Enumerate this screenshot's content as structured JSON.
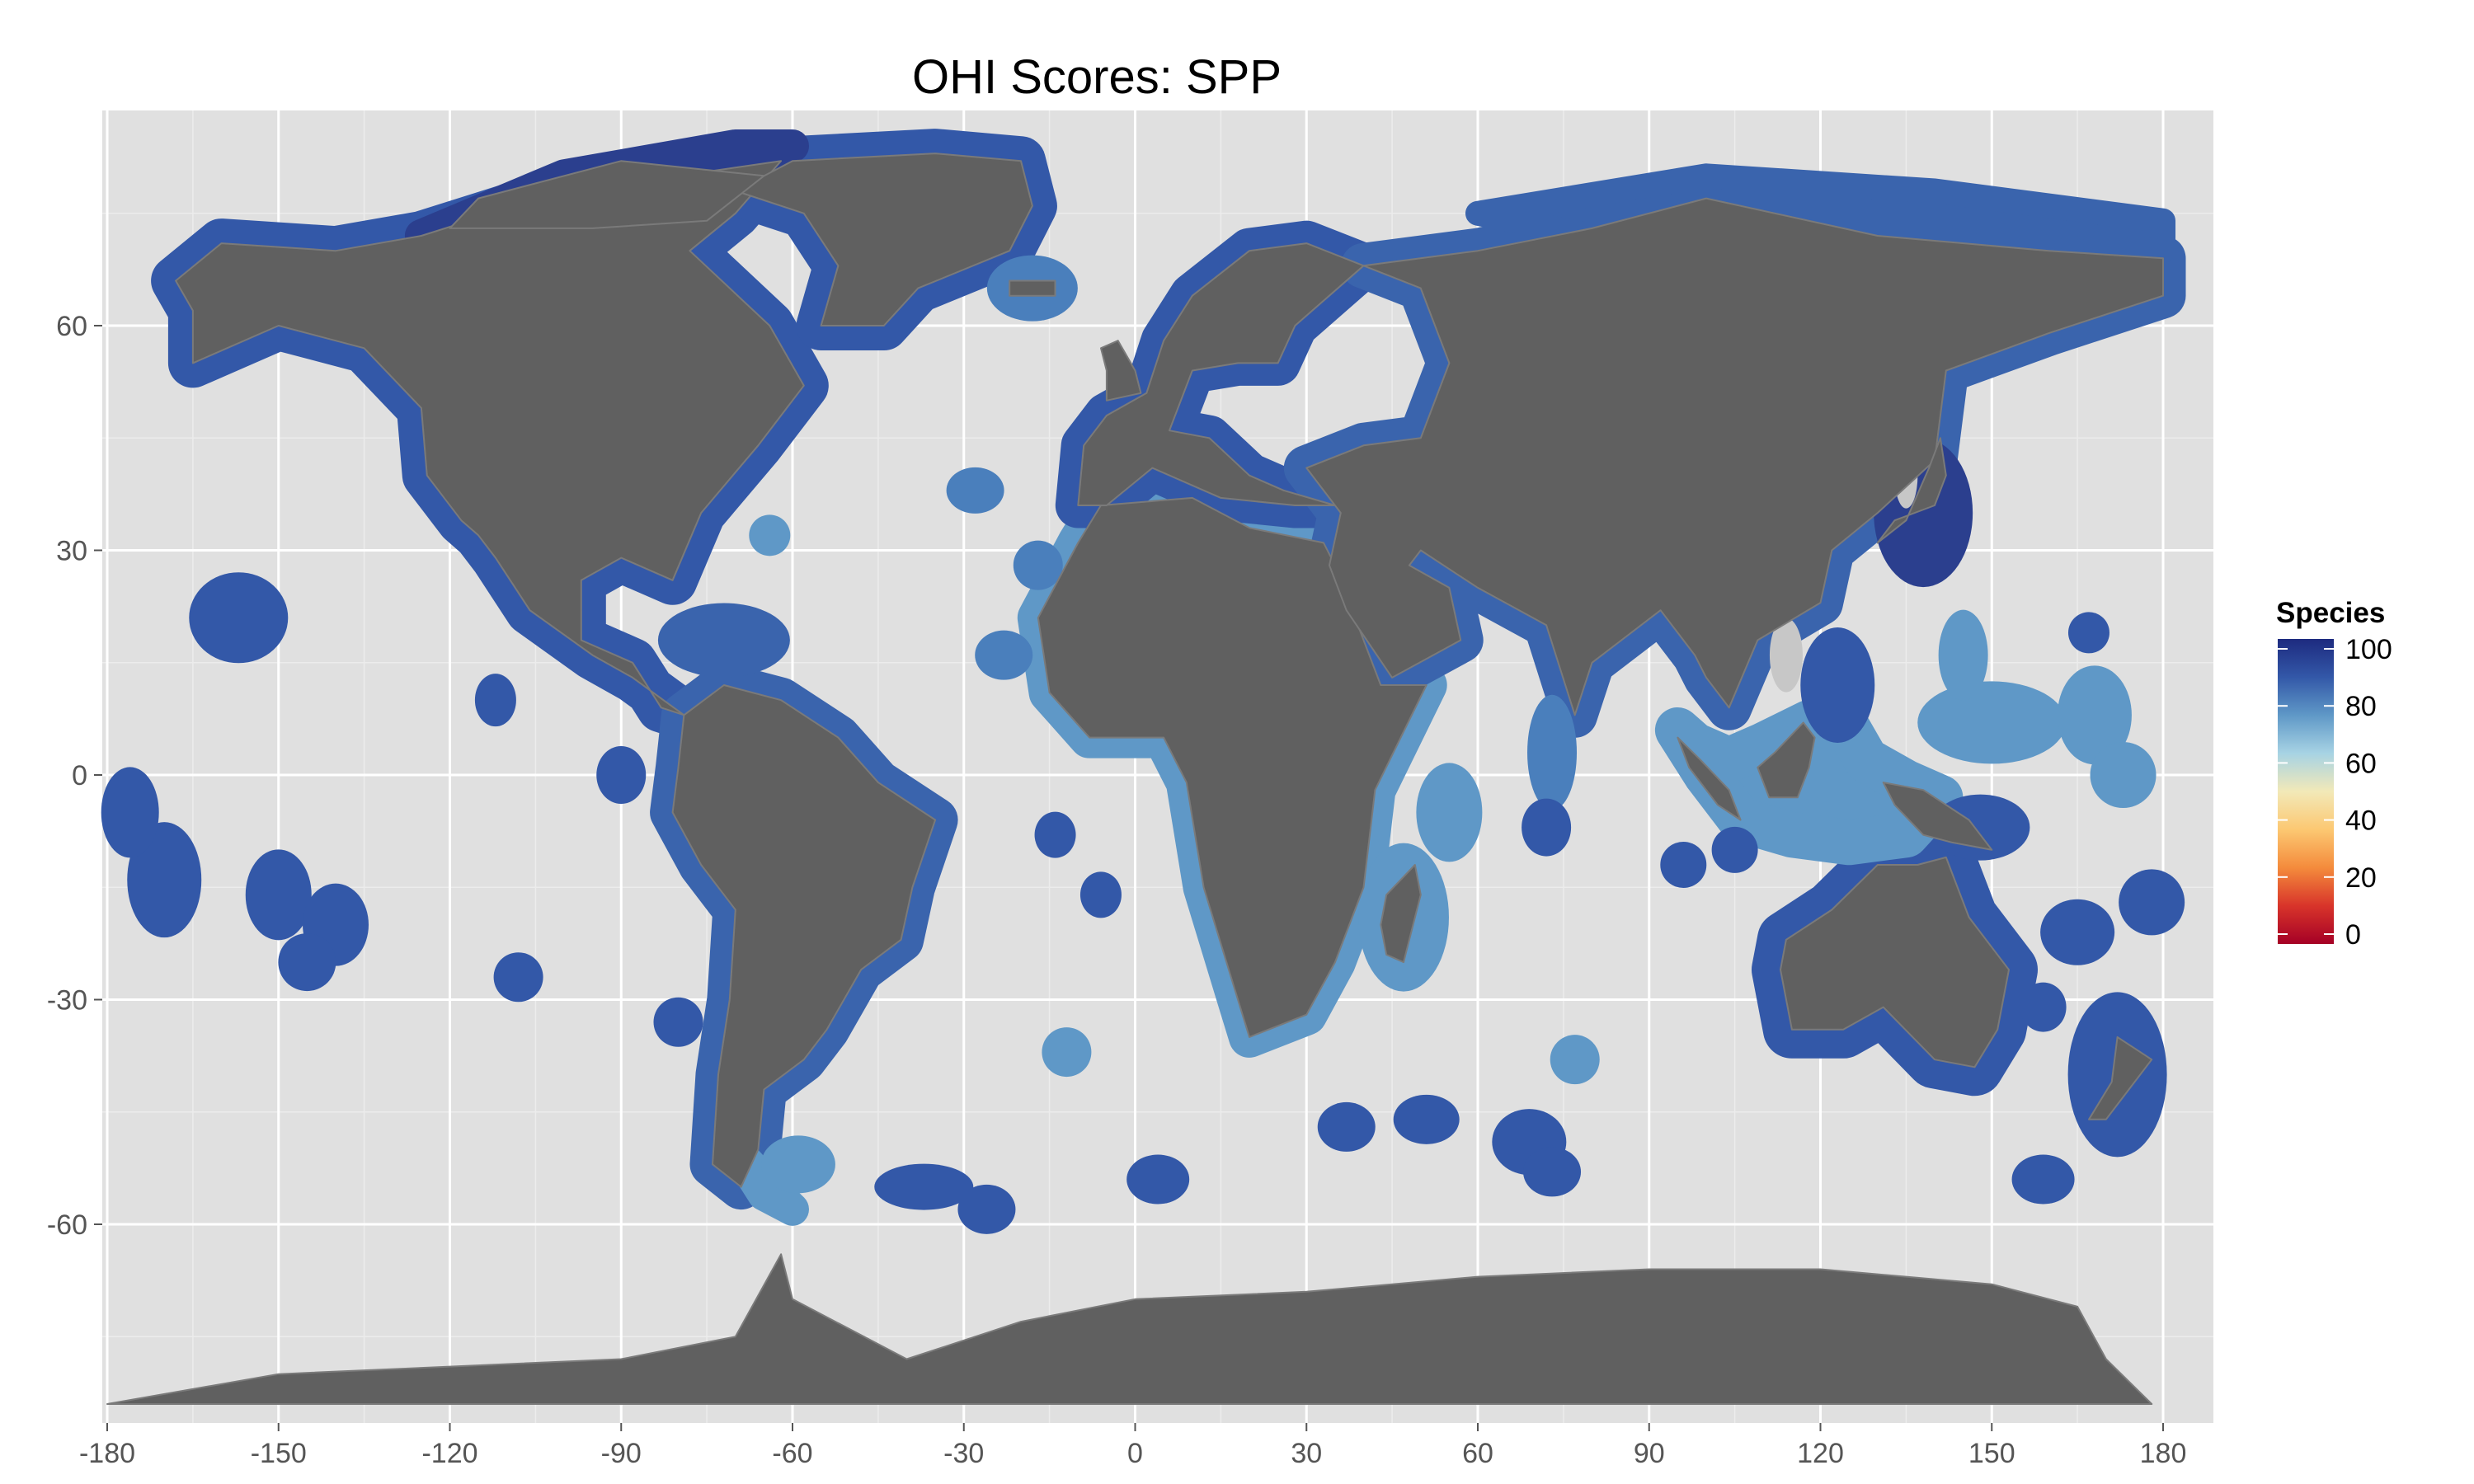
{
  "title": "OHI Scores: SPP",
  "colors": {
    "panel": "#e0e0e0",
    "grid_major": "#ffffff",
    "grid_minor": "#ececec",
    "land": "#606060",
    "land_border": "#7a7a7a",
    "missing": "#c7c7c7"
  },
  "map": {
    "projection": "equirectangular",
    "x_ticks": [
      "-180",
      "-150",
      "-120",
      "-90",
      "-60",
      "-30",
      "0",
      "30",
      "60",
      "90",
      "120",
      "150",
      "180"
    ],
    "y_ticks": [
      "60",
      "30",
      "0",
      "-30",
      "-60"
    ]
  },
  "legend": {
    "title": "Species",
    "labels": [
      "100",
      "80",
      "60",
      "40",
      "20",
      "0"
    ],
    "gradient_stops": [
      "#1d2a7f",
      "#3358a8",
      "#5f98c7",
      "#a7d3e4",
      "#f2e9b8",
      "#fcc872",
      "#f48b3c",
      "#d8342a",
      "#a50026"
    ]
  },
  "chart_data": {
    "type": "heatmap",
    "title": "OHI Scores: SPP",
    "xlim": [
      -180,
      180
    ],
    "ylim": [
      -80,
      85
    ],
    "x_ticks": [
      -180,
      -150,
      -120,
      -90,
      -60,
      -30,
      0,
      30,
      60,
      90,
      120,
      150,
      180
    ],
    "y_ticks": [
      60,
      30,
      0,
      -30,
      -60
    ],
    "color_scale": {
      "title": "Species",
      "range": [
        0,
        100
      ],
      "ticks": [
        0,
        20,
        40,
        60,
        80,
        100
      ]
    },
    "legend_position": "right"
  }
}
